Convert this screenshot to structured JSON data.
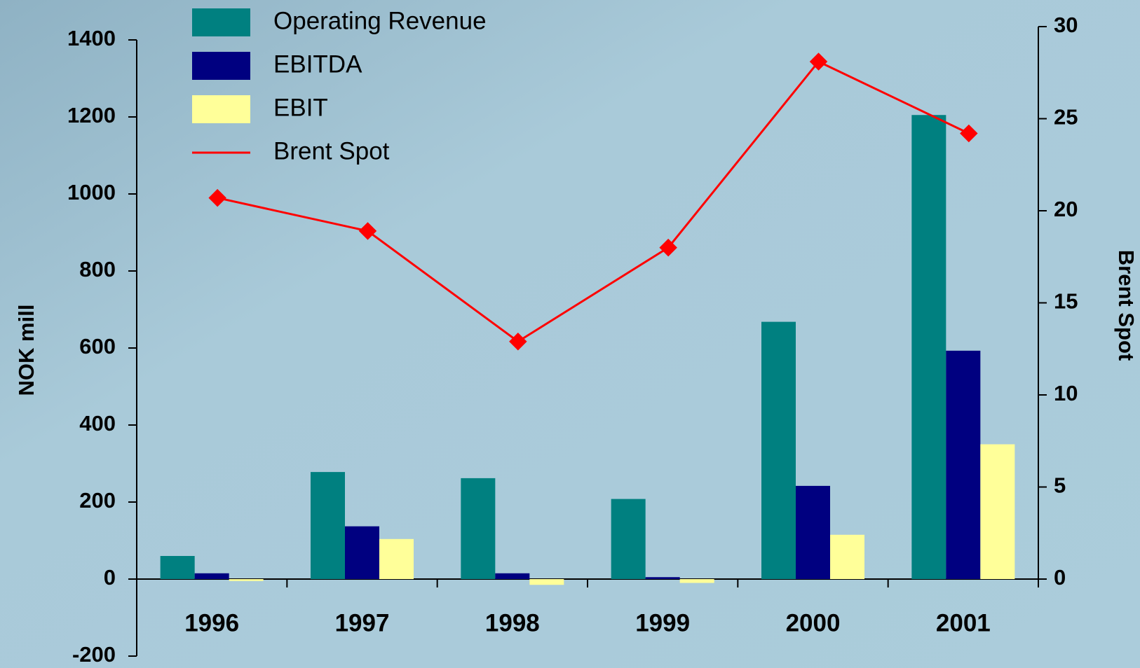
{
  "chart_data": {
    "type": "bar",
    "categories": [
      "1996",
      "1997",
      "1998",
      "1999",
      "2000",
      "2001"
    ],
    "series": [
      {
        "name": "Operating Revenue",
        "color": "#008080",
        "values": [
          60,
          278,
          262,
          208,
          668,
          1205
        ]
      },
      {
        "name": "EBITDA",
        "color": "#000080",
        "values": [
          15,
          137,
          15,
          5,
          242,
          593
        ]
      },
      {
        "name": "EBIT",
        "color": "#ffff99",
        "values": [
          -5,
          104,
          -15,
          -10,
          115,
          350
        ]
      },
      {
        "name": "Brent Spot",
        "color": "#ff0000",
        "type": "line",
        "axis": "y2",
        "values": [
          20.7,
          18.9,
          12.9,
          18.0,
          28.1,
          24.2
        ]
      }
    ],
    "ylabel": "NOK mill",
    "y2label": "Brent Spot",
    "ylim": [
      -200,
      1400
    ],
    "yticks": [
      -200,
      0,
      200,
      400,
      600,
      800,
      1000,
      1200,
      1400
    ],
    "y2lim": [
      0,
      30
    ],
    "y2ticks": [
      0,
      5,
      10,
      15,
      20,
      25,
      30
    ]
  }
}
